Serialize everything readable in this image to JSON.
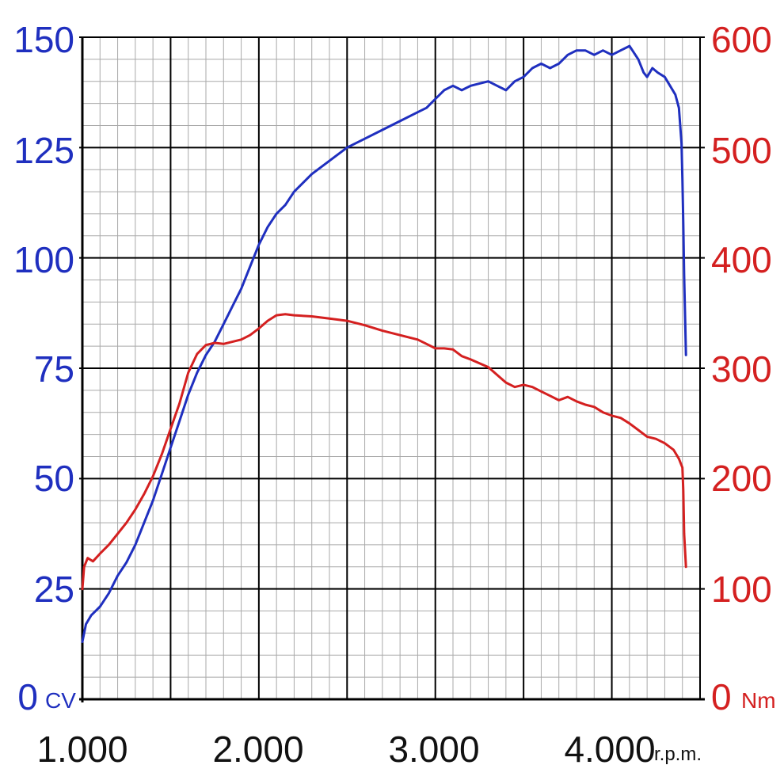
{
  "chart_data": {
    "type": "line",
    "x_axis": {
      "range": [
        1000,
        4500
      ],
      "ticks": [
        1000,
        2000,
        3000,
        4000
      ],
      "tick_labels": [
        "1.000",
        "2.000",
        "3.000",
        "4.000"
      ],
      "unit": "r.p.m."
    },
    "y_left": {
      "range": [
        0,
        150
      ],
      "ticks": [
        0,
        25,
        50,
        75,
        100,
        125,
        150
      ],
      "tick_labels": [
        "0",
        "25",
        "50",
        "75",
        "100",
        "125",
        "150"
      ],
      "unit": "CV",
      "color": "#1f2fbf"
    },
    "y_right": {
      "range": [
        0,
        600
      ],
      "ticks": [
        0,
        100,
        200,
        300,
        400,
        500,
        600
      ],
      "tick_labels": [
        "0",
        "100",
        "200",
        "300",
        "400",
        "500",
        "600"
      ],
      "unit": "Nm",
      "color": "#d42020"
    },
    "grid": true,
    "series": [
      {
        "axis": "left",
        "color": "#1f2fbf",
        "points": [
          [
            1000,
            13
          ],
          [
            1020,
            17
          ],
          [
            1050,
            19
          ],
          [
            1100,
            21
          ],
          [
            1150,
            24
          ],
          [
            1200,
            28
          ],
          [
            1250,
            31
          ],
          [
            1300,
            35
          ],
          [
            1350,
            40
          ],
          [
            1400,
            45
          ],
          [
            1450,
            51
          ],
          [
            1500,
            57
          ],
          [
            1550,
            63
          ],
          [
            1600,
            69
          ],
          [
            1650,
            74
          ],
          [
            1700,
            78
          ],
          [
            1750,
            81
          ],
          [
            1800,
            85
          ],
          [
            1850,
            89
          ],
          [
            1900,
            93
          ],
          [
            1950,
            98
          ],
          [
            2000,
            103
          ],
          [
            2050,
            107
          ],
          [
            2100,
            110
          ],
          [
            2150,
            112
          ],
          [
            2200,
            115
          ],
          [
            2300,
            119
          ],
          [
            2400,
            122
          ],
          [
            2500,
            125
          ],
          [
            2600,
            127
          ],
          [
            2700,
            129
          ],
          [
            2800,
            131
          ],
          [
            2900,
            133
          ],
          [
            2950,
            134
          ],
          [
            3000,
            136
          ],
          [
            3050,
            138
          ],
          [
            3100,
            139
          ],
          [
            3150,
            138
          ],
          [
            3200,
            139
          ],
          [
            3300,
            140
          ],
          [
            3350,
            139
          ],
          [
            3400,
            138
          ],
          [
            3450,
            140
          ],
          [
            3500,
            141
          ],
          [
            3550,
            143
          ],
          [
            3600,
            144
          ],
          [
            3650,
            143
          ],
          [
            3700,
            144
          ],
          [
            3750,
            146
          ],
          [
            3800,
            147
          ],
          [
            3850,
            147
          ],
          [
            3900,
            146
          ],
          [
            3950,
            147
          ],
          [
            4000,
            146
          ],
          [
            4050,
            147
          ],
          [
            4100,
            148
          ],
          [
            4150,
            145
          ],
          [
            4180,
            142
          ],
          [
            4200,
            141
          ],
          [
            4230,
            143
          ],
          [
            4260,
            142
          ],
          [
            4300,
            141
          ],
          [
            4330,
            139
          ],
          [
            4360,
            137
          ],
          [
            4380,
            134
          ],
          [
            4395,
            126
          ],
          [
            4400,
            118
          ],
          [
            4405,
            108
          ],
          [
            4410,
            96
          ],
          [
            4420,
            78
          ]
        ]
      },
      {
        "axis": "right",
        "color": "#d42020",
        "points": [
          [
            1000,
            100
          ],
          [
            1010,
            120
          ],
          [
            1030,
            128
          ],
          [
            1060,
            125
          ],
          [
            1100,
            132
          ],
          [
            1150,
            140
          ],
          [
            1200,
            150
          ],
          [
            1250,
            160
          ],
          [
            1300,
            172
          ],
          [
            1350,
            186
          ],
          [
            1400,
            202
          ],
          [
            1450,
            222
          ],
          [
            1500,
            245
          ],
          [
            1550,
            268
          ],
          [
            1600,
            296
          ],
          [
            1650,
            313
          ],
          [
            1700,
            321
          ],
          [
            1750,
            323
          ],
          [
            1800,
            322
          ],
          [
            1850,
            324
          ],
          [
            1900,
            326
          ],
          [
            1950,
            330
          ],
          [
            2000,
            336
          ],
          [
            2050,
            343
          ],
          [
            2100,
            348
          ],
          [
            2150,
            349
          ],
          [
            2200,
            348
          ],
          [
            2300,
            347
          ],
          [
            2400,
            345
          ],
          [
            2500,
            343
          ],
          [
            2600,
            339
          ],
          [
            2700,
            334
          ],
          [
            2800,
            330
          ],
          [
            2900,
            326
          ],
          [
            2950,
            322
          ],
          [
            3000,
            318
          ],
          [
            3050,
            318
          ],
          [
            3100,
            317
          ],
          [
            3150,
            311
          ],
          [
            3200,
            308
          ],
          [
            3300,
            301
          ],
          [
            3350,
            294
          ],
          [
            3400,
            287
          ],
          [
            3450,
            283
          ],
          [
            3500,
            285
          ],
          [
            3550,
            283
          ],
          [
            3600,
            279
          ],
          [
            3650,
            275
          ],
          [
            3700,
            271
          ],
          [
            3750,
            274
          ],
          [
            3800,
            270
          ],
          [
            3850,
            267
          ],
          [
            3900,
            265
          ],
          [
            3950,
            260
          ],
          [
            4000,
            257
          ],
          [
            4050,
            255
          ],
          [
            4100,
            250
          ],
          [
            4150,
            244
          ],
          [
            4200,
            238
          ],
          [
            4250,
            236
          ],
          [
            4300,
            232
          ],
          [
            4350,
            226
          ],
          [
            4380,
            218
          ],
          [
            4400,
            210
          ],
          [
            4405,
            190
          ],
          [
            4410,
            150
          ],
          [
            4420,
            120
          ]
        ]
      }
    ]
  }
}
